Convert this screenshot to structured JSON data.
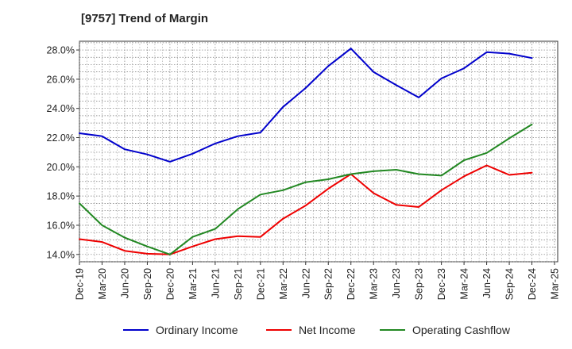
{
  "chart_data": {
    "type": "line",
    "title": "[9757]  Trend of Margin",
    "xlabel": "",
    "ylabel": "",
    "categories": [
      "Dec-19",
      "Mar-20",
      "Jun-20",
      "Sep-20",
      "Dec-20",
      "Mar-21",
      "Jun-21",
      "Sep-21",
      "Dec-21",
      "Mar-22",
      "Jun-22",
      "Sep-22",
      "Dec-22",
      "Mar-23",
      "Jun-23",
      "Sep-23",
      "Dec-23",
      "Mar-24",
      "Jun-24",
      "Sep-24",
      "Dec-24",
      "Mar-25"
    ],
    "y_ticks": [
      "14.0%",
      "16.0%",
      "18.0%",
      "20.0%",
      "22.0%",
      "24.0%",
      "26.0%",
      "28.0%"
    ],
    "ylim": [
      13.5,
      28.6
    ],
    "grid": true,
    "legend_position": "bottom",
    "series": [
      {
        "name": "Ordinary Income",
        "color": "#0000cc",
        "values": [
          22.3,
          22.1,
          21.2,
          20.85,
          20.35,
          20.9,
          21.6,
          22.1,
          22.35,
          24.1,
          25.4,
          26.9,
          28.1,
          26.5,
          25.6,
          24.75,
          26.05,
          26.75,
          27.85,
          27.75,
          27.45,
          null
        ]
      },
      {
        "name": "Net Income",
        "color": "#ee0000",
        "values": [
          15.05,
          14.85,
          14.25,
          14.05,
          14.0,
          14.55,
          15.05,
          15.25,
          15.2,
          16.45,
          17.35,
          18.5,
          19.5,
          18.2,
          17.4,
          17.25,
          18.4,
          19.35,
          20.1,
          19.45,
          19.6,
          null
        ]
      },
      {
        "name": "Operating Cashflow",
        "color": "#228822",
        "values": [
          17.5,
          16.0,
          15.15,
          14.55,
          14.0,
          15.2,
          15.75,
          17.1,
          18.1,
          18.4,
          18.95,
          19.15,
          19.5,
          19.7,
          19.8,
          19.5,
          19.4,
          20.45,
          20.95,
          21.95,
          22.9,
          null
        ]
      }
    ]
  }
}
